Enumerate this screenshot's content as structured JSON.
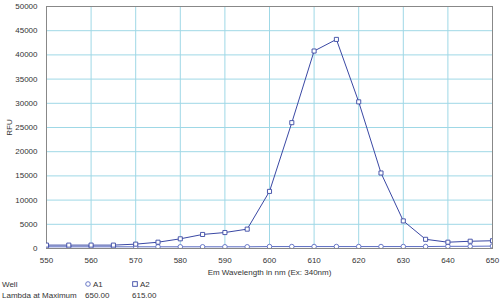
{
  "chart_data": {
    "type": "line",
    "x_label": "Em Wavelength in nm (Ex: 340nm)",
    "y_label": "RFU",
    "x": [
      550,
      555,
      560,
      565,
      570,
      575,
      580,
      585,
      590,
      595,
      600,
      605,
      610,
      615,
      620,
      625,
      630,
      635,
      640,
      645,
      650
    ],
    "series": [
      {
        "name": "A1",
        "color": "#5b6cc2",
        "marker": "circle",
        "values": [
          350,
          350,
          350,
          350,
          350,
          350,
          350,
          350,
          350,
          350,
          400,
          400,
          400,
          400,
          400,
          400,
          400,
          400,
          450,
          450,
          500
        ]
      },
      {
        "name": "A2",
        "color": "#3a48a4",
        "marker": "square",
        "values": [
          700,
          700,
          700,
          700,
          900,
          1300,
          2000,
          2900,
          3300,
          4000,
          11800,
          26000,
          40800,
          43200,
          30300,
          15600,
          5700,
          1900,
          1300,
          1500,
          1600
        ]
      }
    ],
    "xlim": [
      550,
      650
    ],
    "xticks": [
      550,
      560,
      570,
      580,
      590,
      600,
      610,
      620,
      630,
      640,
      650
    ],
    "ylim": [
      0,
      50000
    ],
    "yticks": [
      0,
      5000,
      10000,
      15000,
      20000,
      25000,
      30000,
      35000,
      40000,
      45000,
      50000
    ],
    "grid": true,
    "legend": "bottom-left",
    "legend_title": "Well",
    "maximum_label": "Lambda at Maximum",
    "maximum_values": [
      {
        "value": 650,
        "label": "650.00"
      },
      {
        "value": 615,
        "label": "615.00"
      }
    ]
  }
}
